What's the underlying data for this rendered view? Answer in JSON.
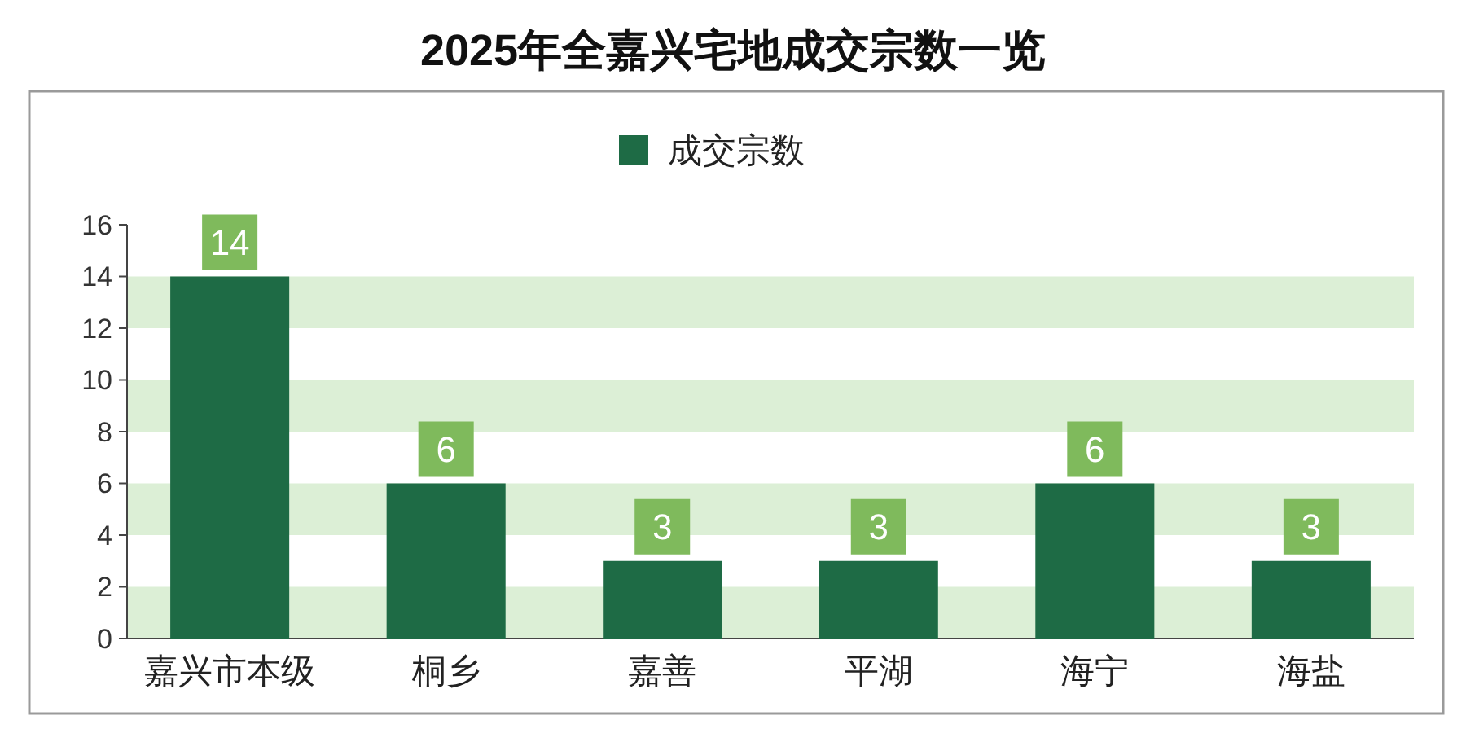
{
  "chart_data": {
    "type": "bar",
    "title": "2025年全嘉兴宅地成交宗数一览",
    "categories": [
      "嘉兴市本级",
      "桐乡",
      "嘉善",
      "平湖",
      "海宁",
      "海盐"
    ],
    "series": [
      {
        "name": "成交宗数",
        "color": "#1e6b45",
        "values": [
          14,
          6,
          3,
          3,
          6,
          3
        ]
      }
    ],
    "ylim": [
      0,
      16
    ],
    "yticks": [
      0,
      2,
      4,
      6,
      8,
      10,
      12,
      14,
      16
    ],
    "bands": [
      {
        "axis": "y",
        "from": 0,
        "to": 2,
        "color": "#dcefd6"
      },
      {
        "axis": "y",
        "from": 4,
        "to": 6,
        "color": "#dcefd6"
      },
      {
        "axis": "y",
        "from": 8,
        "to": 10,
        "color": "#dcefd6"
      },
      {
        "axis": "y",
        "from": 12,
        "to": 14,
        "color": "#dcefd6"
      }
    ],
    "data_labels": true,
    "legend": "top",
    "grid": false
  }
}
